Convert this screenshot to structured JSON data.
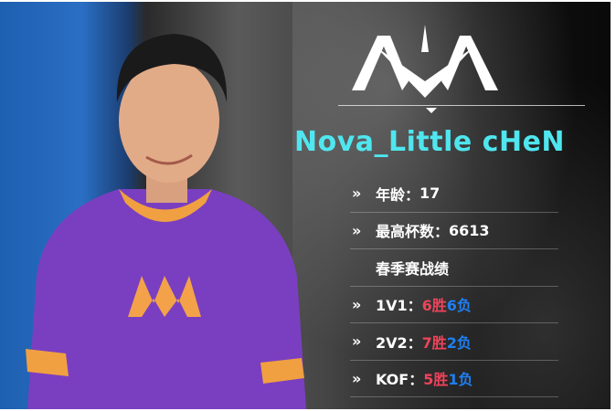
{
  "player": {
    "name": "Nova_Little cHeN",
    "team_logo": "NOVA"
  },
  "stats": [
    {
      "label": "年龄：",
      "value": "17",
      "arrow": "»"
    },
    {
      "label": "最高杯数：",
      "value": "6613",
      "arrow": "»"
    }
  ],
  "section_title": "春季赛战绩",
  "records": [
    {
      "mode": "1V1：",
      "wins": "6胜",
      "losses": "6负",
      "arrow": "»"
    },
    {
      "mode": "2V2：",
      "wins": "7胜",
      "losses": "2负",
      "arrow": "»"
    },
    {
      "mode": "KOF：",
      "wins": "5胜",
      "losses": "1负",
      "arrow": "»"
    }
  ],
  "colors": {
    "name": "#4fe6ef",
    "win": "#f0435a",
    "loss": "#1f7ef0",
    "jersey": "#7a3fc0"
  }
}
